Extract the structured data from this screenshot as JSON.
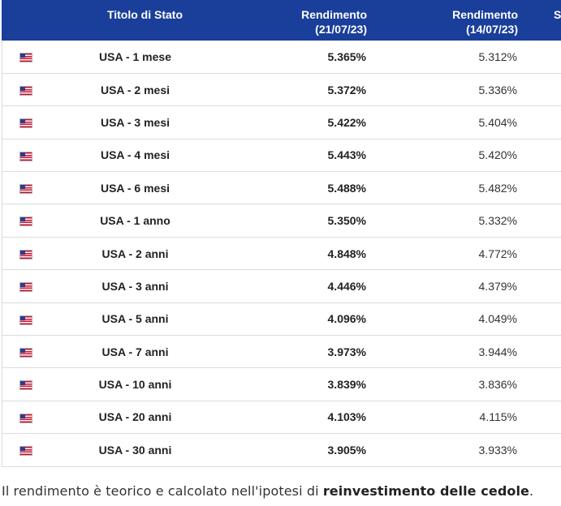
{
  "table": {
    "headers": {
      "title": "Titolo di Stato",
      "yield_current_line1": "Rendimento",
      "yield_current_line2": "(21/07/23)",
      "yield_previous_line1": "Rendimento",
      "yield_previous_line2": "(14/07/23)",
      "extra_partial": "St"
    },
    "rows": [
      {
        "flag": "us-flag-icon",
        "title": "USA - 1 mese",
        "yield_current": "5.365%",
        "yield_previous": "5.312%"
      },
      {
        "flag": "us-flag-icon",
        "title": "USA - 2 mesi",
        "yield_current": "5.372%",
        "yield_previous": "5.336%"
      },
      {
        "flag": "us-flag-icon",
        "title": "USA - 3 mesi",
        "yield_current": "5.422%",
        "yield_previous": "5.404%"
      },
      {
        "flag": "us-flag-icon",
        "title": "USA - 4 mesi",
        "yield_current": "5.443%",
        "yield_previous": "5.420%"
      },
      {
        "flag": "us-flag-icon",
        "title": "USA - 6 mesi",
        "yield_current": "5.488%",
        "yield_previous": "5.482%"
      },
      {
        "flag": "us-flag-icon",
        "title": "USA - 1 anno",
        "yield_current": "5.350%",
        "yield_previous": "5.332%"
      },
      {
        "flag": "us-flag-icon",
        "title": "USA - 2 anni",
        "yield_current": "4.848%",
        "yield_previous": "4.772%"
      },
      {
        "flag": "us-flag-icon",
        "title": "USA - 3 anni",
        "yield_current": "4.446%",
        "yield_previous": "4.379%"
      },
      {
        "flag": "us-flag-icon",
        "title": "USA - 5 anni",
        "yield_current": "4.096%",
        "yield_previous": "4.049%"
      },
      {
        "flag": "us-flag-icon",
        "title": "USA - 7 anni",
        "yield_current": "3.973%",
        "yield_previous": "3.944%"
      },
      {
        "flag": "us-flag-icon",
        "title": "USA - 10 anni",
        "yield_current": "3.839%",
        "yield_previous": "3.836%"
      },
      {
        "flag": "us-flag-icon",
        "title": "USA - 20 anni",
        "yield_current": "4.103%",
        "yield_previous": "4.115%"
      },
      {
        "flag": "us-flag-icon",
        "title": "USA - 30 anni",
        "yield_current": "3.905%",
        "yield_previous": "3.933%"
      }
    ]
  },
  "footnote": {
    "prefix": "Il rendimento è teorico e calcolato nell'ipotesi di ",
    "bold": "reinvestimento delle cedole",
    "suffix": "."
  },
  "colors": {
    "header_bg": "#1a3f9a",
    "header_text": "#ffffff",
    "row_border": "#dcdcdc"
  }
}
